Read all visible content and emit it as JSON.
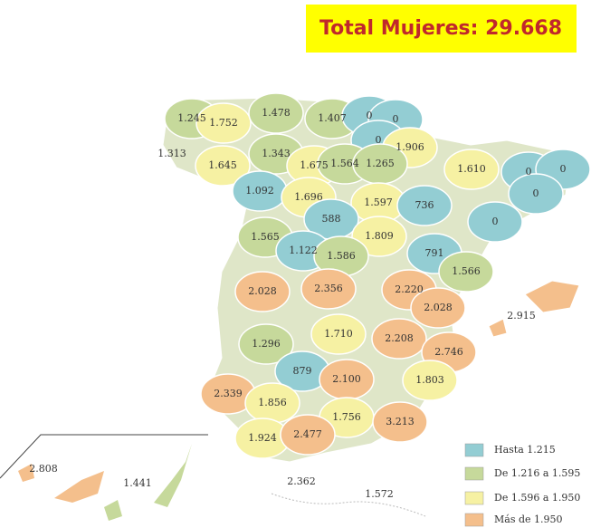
{
  "title": "Total Mujeres: 29.668",
  "legend": [
    {
      "label": "Hasta 1.215",
      "color": "#93cdd3"
    },
    {
      "label": "De 1.216 a 1.595",
      "color": "#c6d99b"
    },
    {
      "label": "De 1.596 a 1.950",
      "color": "#f6f1a3"
    },
    {
      "label": "Más de 1.950",
      "color": "#f4bf8c"
    }
  ],
  "regions": [
    {
      "label": "1.245",
      "color": "#c6d99b"
    },
    {
      "label": "1.752",
      "color": "#f6f1a3"
    },
    {
      "label": "1.478",
      "color": "#c6d99b"
    },
    {
      "label": "1.407",
      "color": "#c6d99b"
    },
    {
      "label": "0",
      "color": "#93cdd3"
    },
    {
      "label": "0",
      "color": "#93cdd3"
    },
    {
      "label": "0",
      "color": "#93cdd3"
    },
    {
      "label": "1.906",
      "color": "#f6f1a3"
    },
    {
      "label": "1.313",
      "color": "#c6d99b"
    },
    {
      "label": "1.343",
      "color": "#c6d99b"
    },
    {
      "label": "1.645",
      "color": "#f6f1a3"
    },
    {
      "label": "1.675",
      "color": "#f6f1a3"
    },
    {
      "label": "1.564",
      "color": "#c6d99b"
    },
    {
      "label": "1.265",
      "color": "#c6d99b"
    },
    {
      "label": "1.610",
      "color": "#f6f1a3"
    },
    {
      "label": "0",
      "color": "#93cdd3"
    },
    {
      "label": "0",
      "color": "#93cdd3"
    },
    {
      "label": "1.092",
      "color": "#93cdd3"
    },
    {
      "label": "1.696",
      "color": "#f6f1a3"
    },
    {
      "label": "1.597",
      "color": "#f6f1a3"
    },
    {
      "label": "736",
      "color": "#93cdd3"
    },
    {
      "label": "0",
      "color": "#93cdd3"
    },
    {
      "label": "588",
      "color": "#93cdd3"
    },
    {
      "label": "0",
      "color": "#93cdd3"
    },
    {
      "label": "1.565",
      "color": "#c6d99b"
    },
    {
      "label": "1.809",
      "color": "#f6f1a3"
    },
    {
      "label": "1.122",
      "color": "#93cdd3"
    },
    {
      "label": "1.586",
      "color": "#c6d99b"
    },
    {
      "label": "791",
      "color": "#93cdd3"
    },
    {
      "label": "1.566",
      "color": "#c6d99b"
    },
    {
      "label": "2.028",
      "color": "#f4bf8c"
    },
    {
      "label": "2.356",
      "color": "#f4bf8c"
    },
    {
      "label": "2.220",
      "color": "#f4bf8c"
    },
    {
      "label": "2.028",
      "color": "#f4bf8c"
    },
    {
      "label": "2.915",
      "color": "#f4bf8c"
    },
    {
      "label": "1.710",
      "color": "#f6f1a3"
    },
    {
      "label": "2.208",
      "color": "#f4bf8c"
    },
    {
      "label": "1.296",
      "color": "#c6d99b"
    },
    {
      "label": "2.746",
      "color": "#f4bf8c"
    },
    {
      "label": "879",
      "color": "#93cdd3"
    },
    {
      "label": "2.100",
      "color": "#f4bf8c"
    },
    {
      "label": "1.803",
      "color": "#f6f1a3"
    },
    {
      "label": "2.339",
      "color": "#f4bf8c"
    },
    {
      "label": "1.856",
      "color": "#f6f1a3"
    },
    {
      "label": "1.756",
      "color": "#f6f1a3"
    },
    {
      "label": "3.213",
      "color": "#f4bf8c"
    },
    {
      "label": "1.924",
      "color": "#f6f1a3"
    },
    {
      "label": "2.477",
      "color": "#f4bf8c"
    },
    {
      "label": "2.808",
      "color": "#f4bf8c"
    },
    {
      "label": "1.441",
      "color": "#c6d99b"
    },
    {
      "label": "2.362",
      "color": "#ffffff"
    },
    {
      "label": "1.572",
      "color": "#ffffff"
    }
  ]
}
